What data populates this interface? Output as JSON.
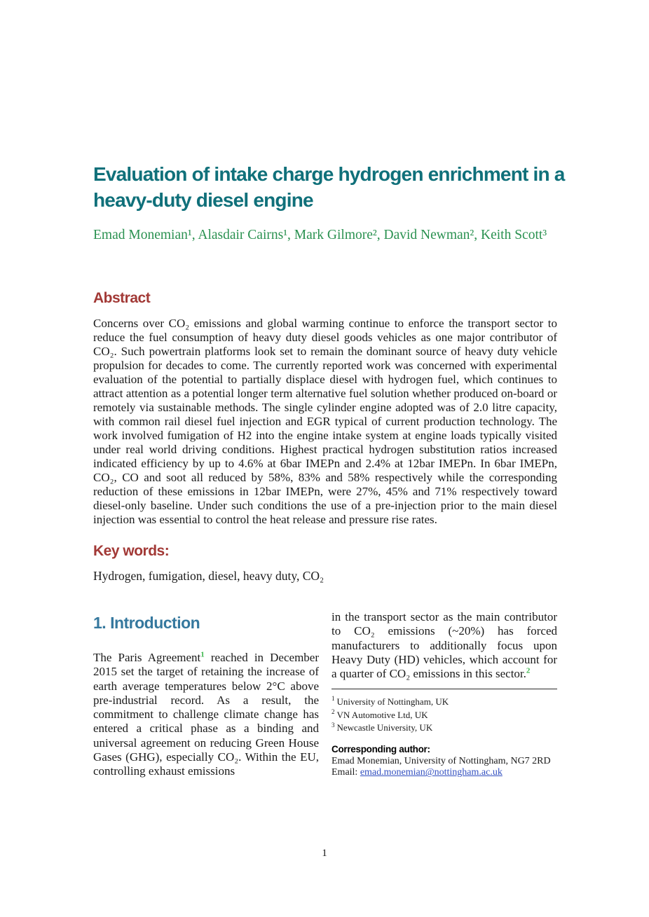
{
  "page": {
    "number": "1"
  },
  "title": "Evaluation of intake charge hydrogen enrichment in a heavy-duty diesel engine",
  "authors": "Emad Monemian¹, Alasdair Cairns¹, Mark Gilmore², David Newman², Keith Scott³",
  "abstract": {
    "heading": "Abstract",
    "body": "Concerns over CO₂ emissions and global warming continue to enforce the transport sector to reduce the fuel consumption of heavy duty diesel goods vehicles as one major contributor of CO₂. Such powertrain platforms look set to remain the dominant source of heavy duty vehicle propulsion for decades to come. The currently reported work was concerned with experimental evaluation of the potential to partially displace diesel with hydrogen fuel, which continues to attract attention as a potential longer term alternative fuel solution whether produced on-board or remotely via sustainable methods. The single cylinder engine adopted was of 2.0 litre capacity, with common rail diesel fuel injection and EGR typical of current production technology. The work involved fumigation of H2 into the engine intake system at engine loads typically visited under real world driving conditions.  Highest practical hydrogen substitution ratios increased indicated efficiency by up to 4.6% at 6bar IMEPn and 2.4% at 12bar IMEPn. In 6bar IMEPn, CO₂, CO and soot all reduced by 58%, 83% and 58% respectively while the corresponding reduction of these emissions in 12bar IMEPn, were 27%, 45% and 71% respectively toward diesel-only baseline. Under such conditions the use of a pre-injection prior to the main diesel injection was essential to control the heat release and pressure rise rates."
  },
  "keywords": {
    "heading": "Key words:",
    "body": "Hydrogen, fumigation, diesel, heavy duty, CO₂"
  },
  "introduction": {
    "heading": "1. Introduction",
    "left_col": {
      "before_ref": "The Paris Agreement",
      "ref": "1",
      "after_ref": " reached in December 2015 set the target of retaining the increase of earth average temperatures below 2°C above pre-industrial record. As a result, the commitment to challenge climate change has entered a critical phase as a binding and universal agreement on reducing Green House Gases (GHG), especially CO₂. Within the EU, controlling exhaust emissions"
    },
    "right_col": {
      "text": "in the transport sector as the main contributor to CO₂ emissions (~20%) has forced manufacturers to additionally focus upon Heavy Duty (HD) vehicles, which account for a quarter of CO₂ emissions in this sector.",
      "ref": "2"
    }
  },
  "footnotes": [
    {
      "mark": "1",
      "text": "University of Nottingham, UK"
    },
    {
      "mark": "2",
      "text": "VN Automotive Ltd, UK"
    },
    {
      "mark": "3",
      "text": "Newcastle University, UK"
    }
  ],
  "corresponding": {
    "heading": "Corresponding author:",
    "line1": "Emad Monemian, University of Nottingham, NG7 2RD",
    "email_label": "Email: ",
    "email": "emad.monemian@nottingham.ac.uk"
  },
  "colors": {
    "title_teal": "#10707a",
    "author_green": "#2a9150",
    "heading_red": "#a23936",
    "intro_blue": "#35789e",
    "ref_green": "#3ab54a",
    "link_blue": "#3350c0"
  }
}
